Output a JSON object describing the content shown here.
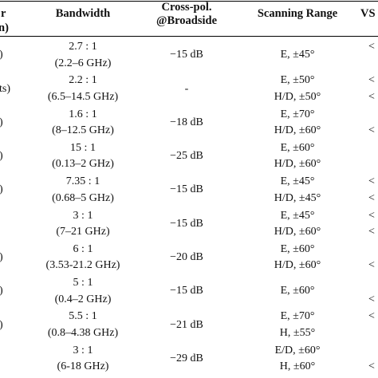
{
  "header": {
    "col0_frag_top": "r",
    "col0_frag_bottom": "n)",
    "bandwidth": "Bandwidth",
    "cross_pol_line1": "Cross-pol.",
    "cross_pol_line2": "@Broadside",
    "scanning_range": "Scanning Range",
    "vswr_frag": "VS"
  },
  "rows": [
    {
      "left": ")",
      "bw1": "2.7 : 1",
      "bw2": "(2.2–6 GHz)",
      "xpol": "−15 dB",
      "scan1": "E, ±45°",
      "scan2": "",
      "right1": "<",
      "right2": ""
    },
    {
      "left": "ts)",
      "bw1": "2.2 : 1",
      "bw2": "(6.5–14.5 GHz)",
      "xpol": "-",
      "scan1": "E, ±50°",
      "scan2": "H/D, ±50°",
      "right1": "<",
      "right2": "<"
    },
    {
      "left": ")",
      "bw1": "1.6 : 1",
      "bw2": "(8–12.5 GHz)",
      "xpol": "−18 dB",
      "scan1": "E, ±70°",
      "scan2": "H/D, ±60°",
      "right1": "",
      "right2": "<"
    },
    {
      "left": ")",
      "bw1": "15 : 1",
      "bw2": "(0.13–2 GHz)",
      "xpol": "−25 dB",
      "scan1": "E, ±60°",
      "scan2": "H/D, ±60°",
      "right1": "",
      "right2": ""
    },
    {
      "left": ")",
      "bw1": "7.35 : 1",
      "bw2": "(0.68–5 GHz)",
      "xpol": "−15 dB",
      "scan1": "E, ±45°",
      "scan2": "H/D, ±45°",
      "right1": "<",
      "right2": "<"
    },
    {
      "left": "",
      "bw1": "3 : 1",
      "bw2": "(7–21 GHz)",
      "xpol": "−15 dB",
      "scan1": "E, ±45°",
      "scan2": "H/D, ±60°",
      "right1": "<",
      "right2": "<"
    },
    {
      "left": ")",
      "bw1": "6 : 1",
      "bw2": "(3.53-21.2 GHz)",
      "xpol": "−20 dB",
      "scan1": "E, ±60°",
      "scan2": "H/D, ±60°",
      "right1": "",
      "right2": "<"
    },
    {
      "left": ")",
      "bw1": "5 : 1",
      "bw2": "(0.4–2 GHz)",
      "xpol": "−15 dB",
      "scan1": "E, ±60°",
      "scan2": "",
      "right1": "",
      "right2": "<"
    },
    {
      "left": ")",
      "bw1": "5.5 : 1",
      "bw2": "(0.8–4.38 GHz)",
      "xpol": "−21 dB",
      "scan1": "E, ±70°",
      "scan2": "H, ±55°",
      "right1": "<",
      "right2": ""
    },
    {
      "left": "",
      "bw1": "3 : 1",
      "bw2": "(6-18 GHz)",
      "xpol": "−29 dB",
      "scan1": "E/D, ±60°",
      "scan2": "H, ±60°",
      "right1": "",
      "right2": "<"
    }
  ]
}
